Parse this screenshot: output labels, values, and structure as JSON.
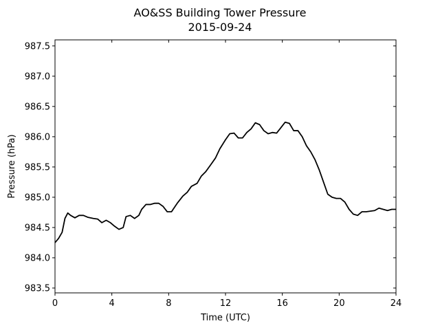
{
  "chart_data": {
    "type": "line",
    "title": "AO&SS Building Tower Pressure",
    "subtitle": "2015-09-24",
    "xlabel": "Time (UTC)",
    "ylabel": "Pressure (hPa)",
    "xlim": [
      0,
      24
    ],
    "ylim": [
      983.42,
      987.6
    ],
    "xticks": [
      0,
      4,
      8,
      12,
      16,
      20,
      24
    ],
    "yticks": [
      983.5,
      984.0,
      984.5,
      985.0,
      985.5,
      986.0,
      986.5,
      987.0,
      987.5
    ],
    "ytick_labels": [
      "983.5",
      "984.0",
      "984.5",
      "985.0",
      "985.5",
      "986.0",
      "986.5",
      "987.0",
      "987.5"
    ],
    "grid": false,
    "line_color": "#000000",
    "series": [
      {
        "x": [
          0.0,
          0.25,
          0.5,
          0.7,
          0.9,
          1.1,
          1.4,
          1.7,
          2.0,
          2.3,
          2.7,
          3.0,
          3.3,
          3.6,
          3.9,
          4.2,
          4.5,
          4.8,
          5.0,
          5.3,
          5.6,
          5.9,
          6.1,
          6.4,
          6.7,
          7.0,
          7.3,
          7.6,
          7.9,
          8.2,
          8.6,
          9.0,
          9.3,
          9.6,
          10.0,
          10.3,
          10.6,
          11.0,
          11.3,
          11.6,
          12.0,
          12.3,
          12.6,
          12.9,
          13.2,
          13.5,
          13.8,
          14.1,
          14.4,
          14.7,
          15.0,
          15.3,
          15.6,
          15.9,
          16.2,
          16.5,
          16.8,
          17.1,
          17.4,
          17.7,
          18.0,
          18.3,
          18.6,
          18.9,
          19.2,
          19.5,
          19.8,
          20.1,
          20.4,
          20.7,
          21.0,
          21.3,
          21.6,
          21.9,
          22.2,
          22.5,
          22.8,
          23.1,
          23.4,
          23.7,
          24.0
        ],
        "y": [
          984.25,
          984.32,
          984.42,
          984.65,
          984.74,
          984.7,
          984.66,
          984.7,
          984.7,
          984.67,
          984.65,
          984.64,
          984.58,
          984.62,
          984.58,
          984.52,
          984.47,
          984.5,
          984.68,
          984.7,
          984.65,
          984.7,
          984.8,
          984.88,
          984.88,
          984.9,
          984.9,
          984.85,
          984.76,
          984.76,
          984.9,
          985.02,
          985.08,
          985.18,
          985.23,
          985.35,
          985.42,
          985.55,
          985.65,
          985.8,
          985.95,
          986.05,
          986.06,
          985.98,
          985.98,
          986.07,
          986.13,
          986.23,
          986.2,
          986.1,
          986.05,
          986.07,
          986.06,
          986.15,
          986.24,
          986.22,
          986.1,
          986.1,
          986.0,
          985.85,
          985.75,
          985.62,
          985.45,
          985.25,
          985.05,
          985.0,
          984.98,
          984.98,
          984.92,
          984.8,
          984.72,
          984.7,
          984.76,
          984.76,
          984.77,
          984.78,
          984.82,
          984.8,
          984.78,
          984.8,
          984.8
        ]
      }
    ]
  }
}
